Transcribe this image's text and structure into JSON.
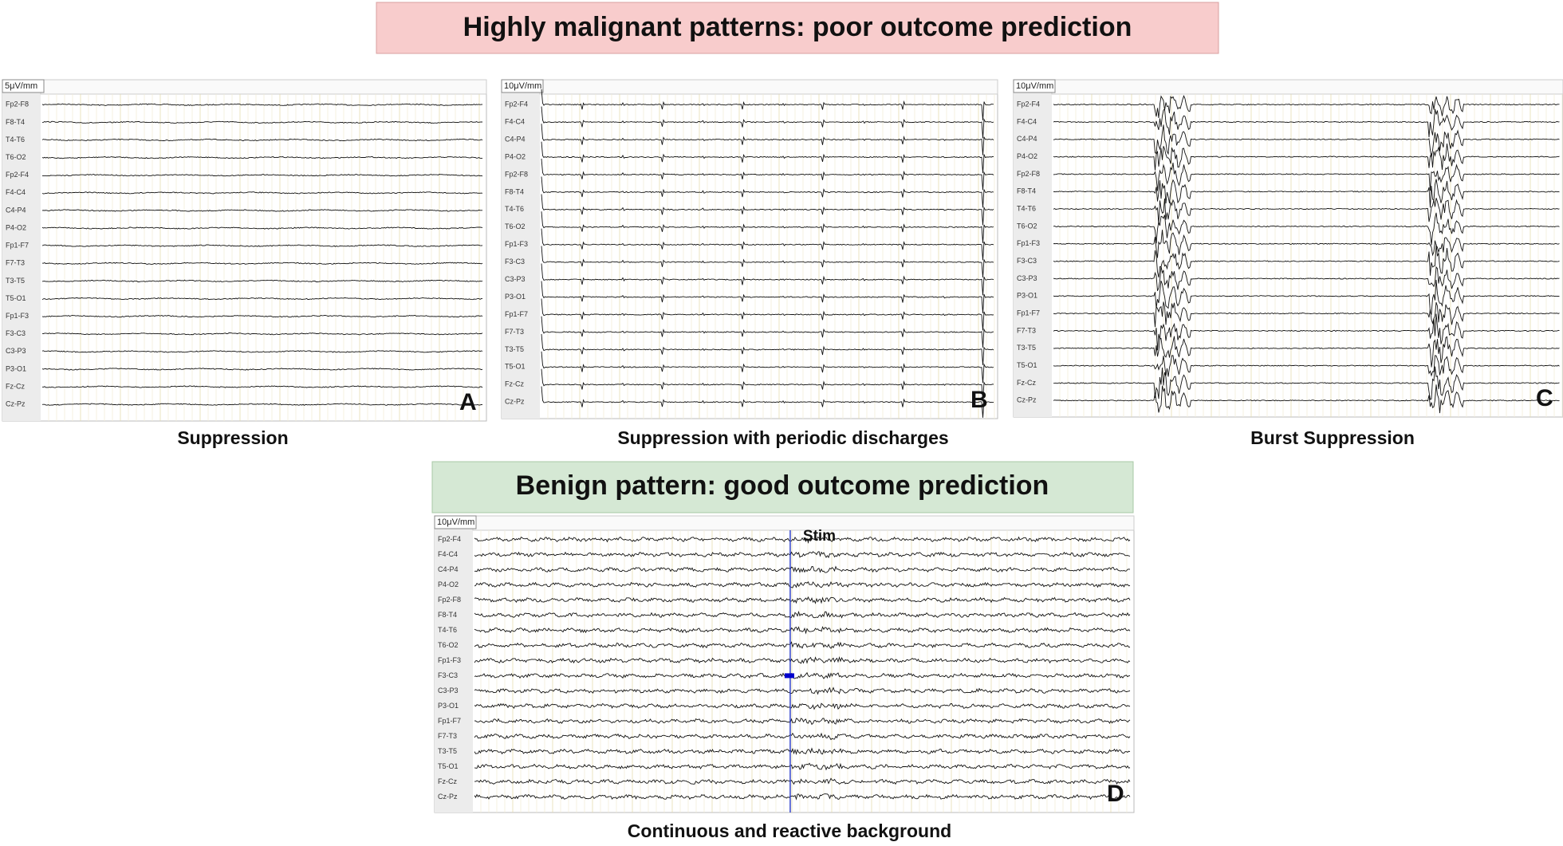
{
  "header": {
    "title": "Highly malignant patterns: poor outcome prediction"
  },
  "benign_header": {
    "title": "Benign pattern: good outcome prediction"
  },
  "panels": [
    {
      "letter": "A",
      "scale": "5μV/mm",
      "caption": "Suppression",
      "channels": [
        "Fp2-F8",
        "F8-T4",
        "T4-T6",
        "T6-O2",
        "Fp2-F4",
        "F4-C4",
        "C4-P4",
        "P4-O2",
        "Fp1-F7",
        "F7-T3",
        "T3-T5",
        "T5-O1",
        "Fp1-F3",
        "F3-C3",
        "C3-P3",
        "P3-O1",
        "Fz-Cz",
        "Cz-Pz"
      ]
    },
    {
      "letter": "B",
      "scale": "10μV/mm",
      "caption": "Suppression with periodic discharges",
      "channels": [
        "Fp2-F4",
        "F4-C4",
        "C4-P4",
        "P4-O2",
        "Fp2-F8",
        "F8-T4",
        "T4-T6",
        "T6-O2",
        "Fp1-F3",
        "F3-C3",
        "C3-P3",
        "P3-O1",
        "Fp1-F7",
        "F7-T3",
        "T3-T5",
        "T5-O1",
        "Fz-Cz",
        "Cz-Pz"
      ]
    },
    {
      "letter": "C",
      "scale": "10μV/mm",
      "caption": "Burst Suppression",
      "channels": [
        "Fp2-F4",
        "F4-C4",
        "C4-P4",
        "P4-O2",
        "Fp2-F8",
        "F8-T4",
        "T4-T6",
        "T6-O2",
        "Fp1-F3",
        "F3-C3",
        "C3-P3",
        "P3-O1",
        "Fp1-F7",
        "F7-T3",
        "T3-T5",
        "T5-O1",
        "Fz-Cz",
        "Cz-Pz"
      ]
    },
    {
      "letter": "D",
      "scale": "10μV/mm",
      "caption": "Continuous and reactive background",
      "annotation": "Stim",
      "channels": [
        "Fp2-F4",
        "F4-C4",
        "C4-P4",
        "P4-O2",
        "Fp2-F8",
        "F8-T4",
        "T4-T6",
        "T6-O2",
        "Fp1-F3",
        "F3-C3",
        "C3-P3",
        "P3-O1",
        "Fp1-F7",
        "F7-T3",
        "T3-T5",
        "T5-O1",
        "Fz-Cz",
        "Cz-Pz"
      ]
    }
  ]
}
